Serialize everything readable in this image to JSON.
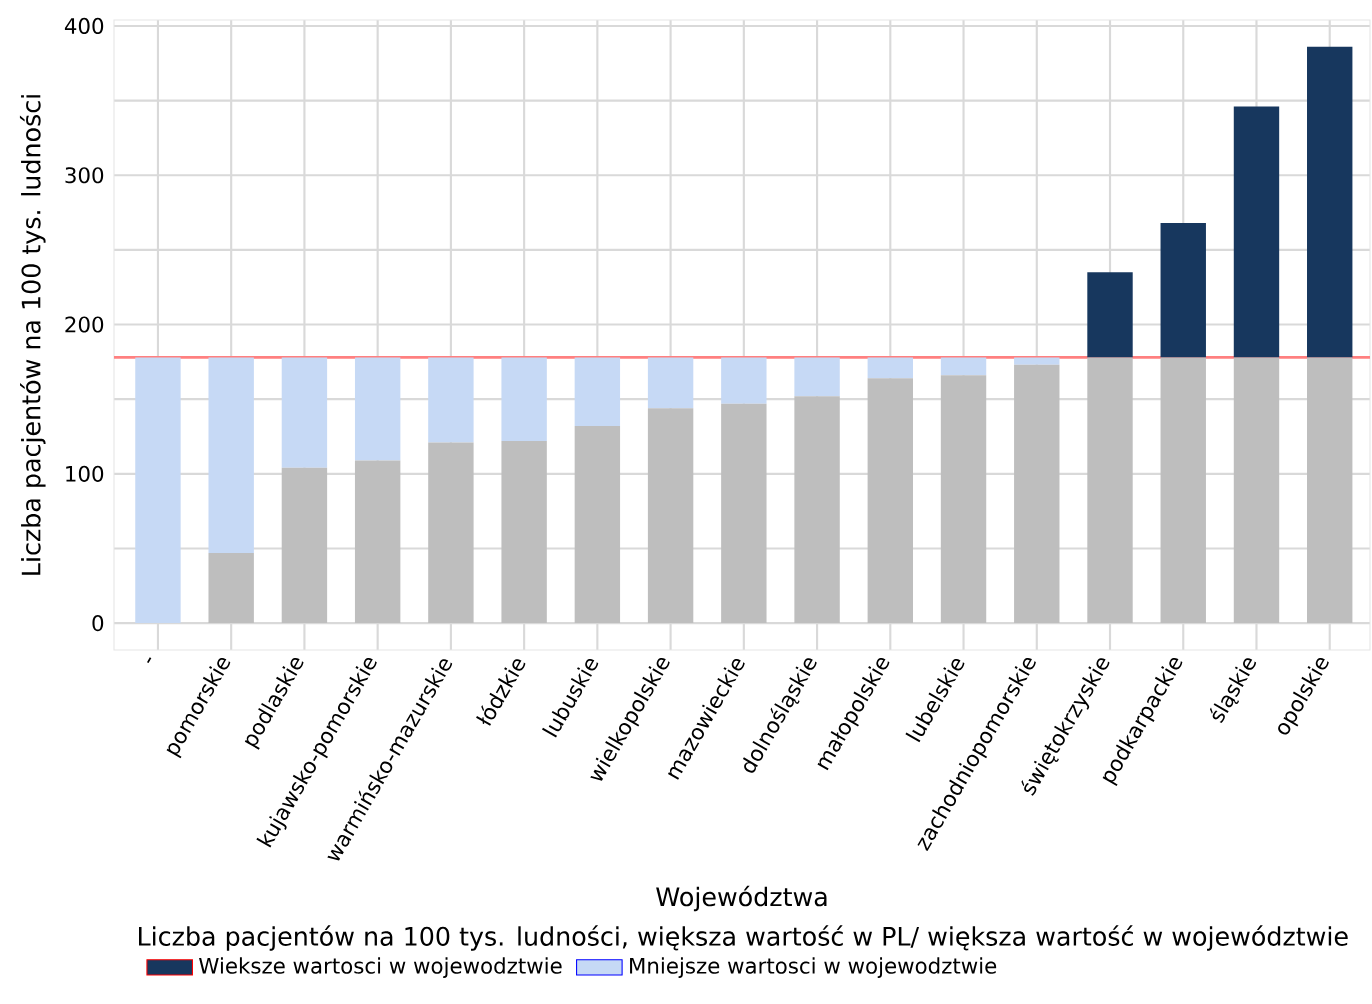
{
  "chart_data": {
    "type": "bar",
    "stacked": true,
    "xlabel": "Województwa",
    "ylabel": "Liczba pacjentów na 100 tys. ludności",
    "legend_title": "Liczba pacjentów na 100 tys. ludności, większa wartość w PL/ większa wartość w województwie",
    "categories": [
      "-",
      "pomorskie",
      "podlaskie",
      "kujawsko-pomorskie",
      "warmińsko-mazurskie",
      "łódzkie",
      "lubuskie",
      "wielkopolskie",
      "mazowieckie",
      "dolnośląskie",
      "małopolskie",
      "lubelskie",
      "zachodniopomorskie",
      "świętokrzyskie",
      "podkarpackie",
      "śląskie",
      "opolskie"
    ],
    "series": [
      {
        "color": "#bebebe",
        "values": [
          0,
          47,
          104,
          109,
          121,
          122,
          132,
          144,
          147,
          152,
          164,
          166,
          173,
          178,
          178,
          178,
          178
        ]
      },
      {
        "name": "Mniejsze wartosci w wojewodztwie",
        "color": "#c6d9f5",
        "values": [
          178,
          131,
          74,
          69,
          57,
          56,
          46,
          34,
          31,
          26,
          14,
          12,
          5,
          0,
          0,
          0,
          0
        ]
      },
      {
        "name": "Wieksze wartosci w wojewodztwie",
        "color": "#17375e",
        "values": [
          0,
          0,
          0,
          0,
          0,
          0,
          0,
          0,
          0,
          0,
          0,
          0,
          0,
          57,
          90,
          168,
          208
        ]
      }
    ],
    "ylim": [
      -18,
      404
    ],
    "yticks": [
      0,
      {
        "value": 50,
        "label": null
      },
      100,
      {
        "value": 150,
        "label": null
      },
      200,
      {
        "value": 250,
        "label": null
      },
      300,
      {
        "value": 350,
        "label": null
      },
      400
    ],
    "ref_lines": [
      {
        "axis": "y",
        "value": 178,
        "color": "#ff8080"
      }
    ],
    "grid": true,
    "legend": "bottom"
  }
}
